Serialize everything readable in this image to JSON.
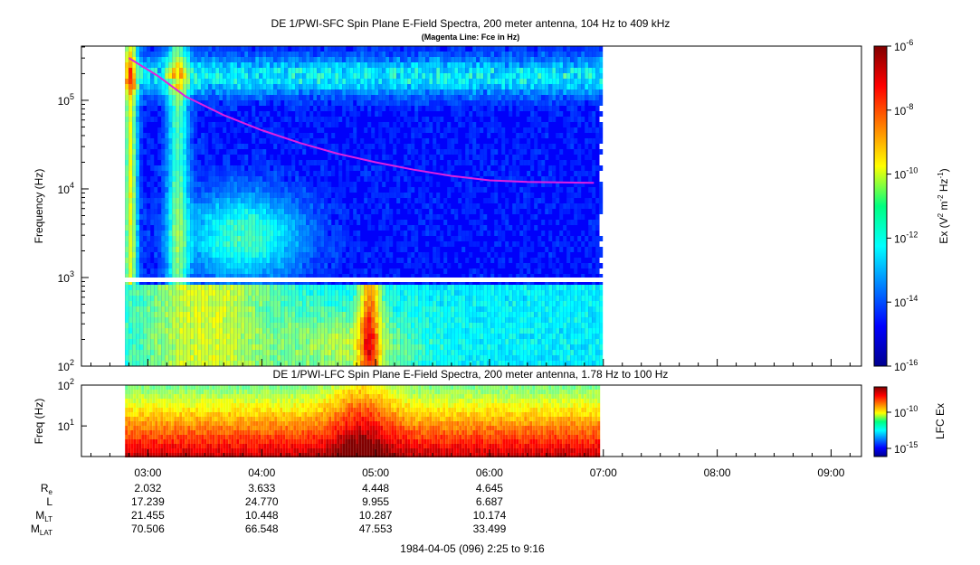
{
  "chart_data": [
    {
      "type": "heatmap",
      "title": "DE 1/PWI-SFC  Spin Plane E-Field Spectra, 200 meter antenna, 104 Hz to 409 kHz",
      "subtitle": "(Magenta Line: Fce in Hz)",
      "ylabel": "Frequency (Hz)",
      "yscale": "log",
      "ylim": [
        100,
        409000
      ],
      "yticks": [
        {
          "base": "10",
          "exp": "2"
        },
        {
          "base": "10",
          "exp": "3"
        },
        {
          "base": "10",
          "exp": "4"
        },
        {
          "base": "10",
          "exp": "5"
        }
      ],
      "colorbar": {
        "label": {
          "p1": "Ex (V",
          "p1sup": "2",
          "p2": " m",
          "p2sup": "-2",
          "p3": " Hz",
          "p3sup": "-1",
          "p4": ")"
        },
        "scale": "log",
        "range": [
          1e-16,
          1e-06
        ],
        "ticks": [
          {
            "base": "10",
            "exp": "-6"
          },
          {
            "base": "10",
            "exp": "-8"
          },
          {
            "base": "10",
            "exp": "-10"
          },
          {
            "base": "10",
            "exp": "-12"
          },
          {
            "base": "10",
            "exp": "-14"
          },
          {
            "base": "10",
            "exp": "-16"
          }
        ]
      },
      "data_coverage_ut": [
        "02:48",
        "06:58"
      ],
      "gap_frequency_hz": [
        880,
        1000
      ],
      "fce_line": {
        "color": "#e020e0",
        "x": [
          "02:50",
          "03:05",
          "03:20",
          "03:40",
          "04:00",
          "04:20",
          "04:40",
          "05:00",
          "05:20",
          "05:40",
          "06:00",
          "06:20",
          "06:55"
        ],
        "y": [
          300000,
          190000,
          110000,
          68000,
          46000,
          33000,
          25000,
          20000,
          16500,
          14000,
          12500,
          12000,
          11700
        ]
      }
    },
    {
      "type": "heatmap",
      "title": "DE 1/PWI-LFC  Spin Plane E-Field Spectra, 200 meter antenna, 1.78 Hz to 100 Hz",
      "ylabel": "Freq (Hz)",
      "yscale": "log",
      "ylim": [
        1.78,
        100
      ],
      "yticks": [
        {
          "base": "10",
          "exp": "1"
        },
        {
          "base": "10",
          "exp": "2"
        }
      ],
      "colorbar": {
        "label": "LFC Ex",
        "scale": "log",
        "ticks": [
          {
            "base": "10",
            "exp": "-10"
          },
          {
            "base": "10",
            "exp": "-15"
          }
        ]
      }
    }
  ],
  "time_axis": {
    "range": [
      "02:25",
      "09:16"
    ],
    "ticks": [
      "03:00",
      "04:00",
      "05:00",
      "06:00",
      "07:00",
      "08:00",
      "09:00"
    ],
    "caption": "1984-04-05 (096) 2:25 to 9:16"
  },
  "ephemeris": {
    "rows": [
      {
        "label": "R",
        "sub": "e",
        "values": [
          "2.032",
          "3.633",
          "4.448",
          "4.645"
        ]
      },
      {
        "label": "L",
        "sub": "",
        "values": [
          "17.239",
          "24.770",
          "9.955",
          "6.687"
        ]
      },
      {
        "label": "M",
        "sub": "LT",
        "values": [
          "21.455",
          "10.448",
          "10.287",
          "10.174"
        ]
      },
      {
        "label": "M",
        "sub": "LAT",
        "values": [
          "70.506",
          "66.548",
          "47.553",
          "33.499"
        ]
      }
    ]
  }
}
